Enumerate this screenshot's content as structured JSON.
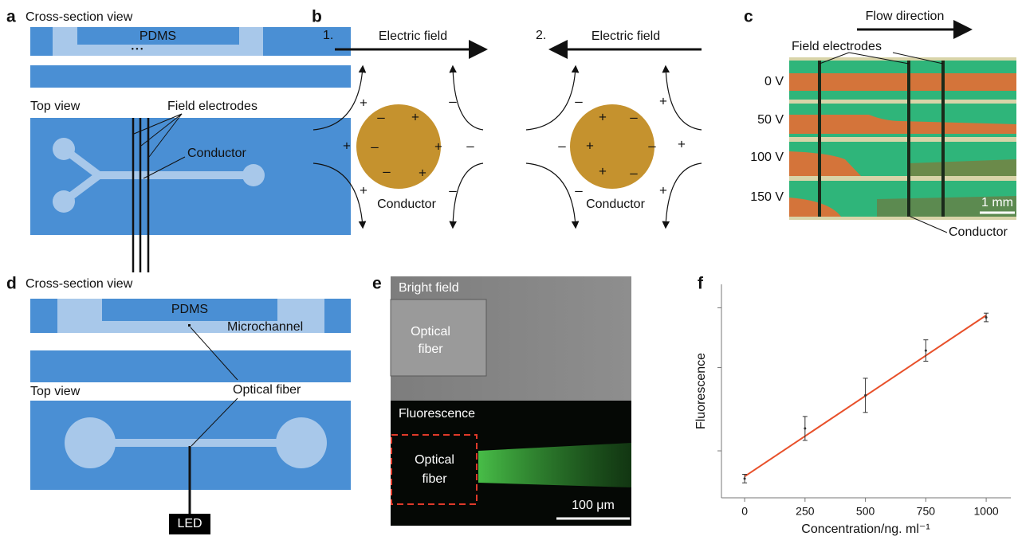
{
  "panels": {
    "a": {
      "label": "a",
      "cross_section_title": "Cross-section view",
      "pdms": "PDMS",
      "dots": "• • •",
      "top_view_title": "Top view",
      "field_electrodes": "Field electrodes",
      "conductor": "Conductor"
    },
    "b": {
      "label": "b",
      "left": {
        "number": "1.",
        "field": "Electric field",
        "conductor": "Conductor",
        "charges": [
          "–",
          "+",
          "–",
          "+",
          "–",
          "+",
          "+",
          "+",
          "+",
          "–",
          "–",
          "–"
        ]
      },
      "right": {
        "number": "2.",
        "field": "Electric field",
        "conductor": "Conductor",
        "charges": [
          "+",
          "–",
          "+",
          "–",
          "+",
          "–",
          "–",
          "–",
          "–",
          "+",
          "+",
          "+"
        ]
      }
    },
    "c": {
      "label": "c",
      "flow": "Flow direction",
      "field_electrodes": "Field electrodes",
      "voltages": [
        "0 V",
        "50 V",
        "100 V",
        "150 V"
      ],
      "scale": "1 mm",
      "conductor": "Conductor"
    },
    "d": {
      "label": "d",
      "cross_section_title": "Cross-section view",
      "pdms": "PDMS",
      "microchannel": "Microchannel",
      "top_view_title": "Top view",
      "optical_fiber": "Optical fiber",
      "led": "LED"
    },
    "e": {
      "label": "e",
      "bright_field": "Bright field",
      "fiber_top": [
        "Optical",
        "fiber"
      ],
      "fluorescence": "Fluorescence",
      "fiber_bottom": [
        "Optical",
        "fiber"
      ],
      "scale": "100 μm"
    },
    "f": {
      "label": "f"
    }
  },
  "chart_data": {
    "type": "scatter",
    "x": [
      0,
      250,
      500,
      750,
      1000
    ],
    "values": [
      9,
      32.5,
      48,
      69,
      84.5
    ],
    "errors": [
      2,
      5.6,
      8,
      5,
      2
    ],
    "color": "#333333",
    "fit": {
      "x": [
        0,
        1000
      ],
      "values": [
        10,
        85.5
      ],
      "color": "#e8502a"
    },
    "xlim": [
      -96,
      1102
    ],
    "ylim": [
      0,
      100
    ],
    "xticks": [
      0,
      250,
      500,
      750,
      1000
    ],
    "yticks": [
      22,
      61,
      89
    ],
    "xlabel": "Concentration/ng. ml⁻¹",
    "ylabel": "Fluorescence"
  }
}
